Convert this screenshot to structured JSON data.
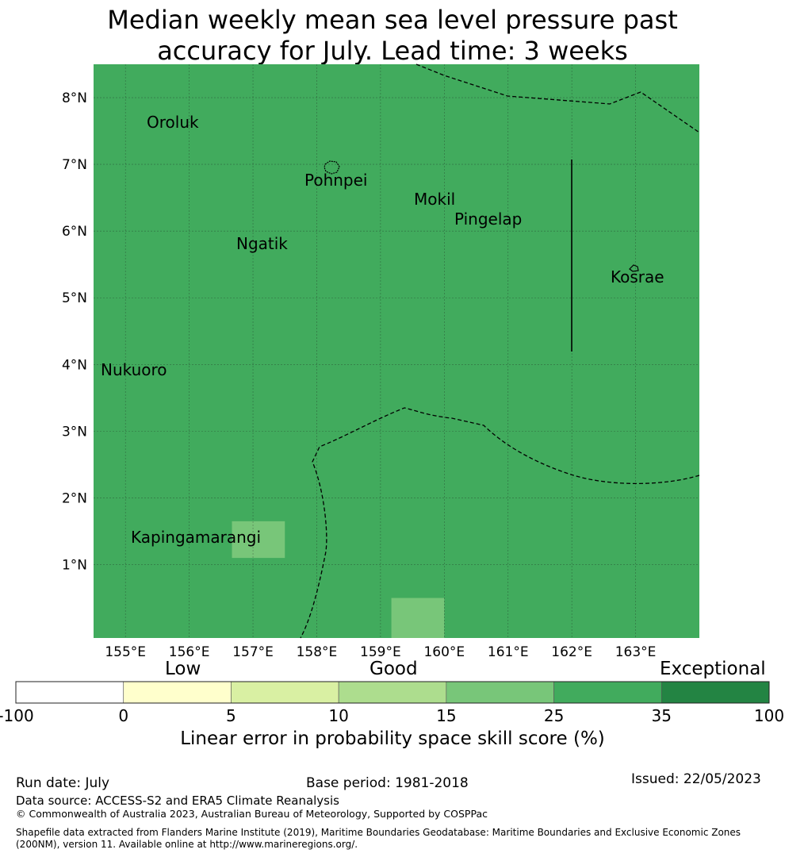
{
  "title_lines": [
    "Median weekly mean sea level pressure past",
    "accuracy for July. Lead time: 3 weeks"
  ],
  "map": {
    "lon_range": [
      154.5,
      164.0
    ],
    "lat_range": [
      -0.1,
      8.5
    ],
    "lon_ticks": [
      "155°E",
      "156°E",
      "157°E",
      "158°E",
      "159°E",
      "160°E",
      "161°E",
      "162°E",
      "163°E"
    ],
    "lat_ticks": [
      "1°N",
      "2°N",
      "3°N",
      "4°N",
      "5°N",
      "6°N",
      "7°N",
      "8°N"
    ],
    "background_skill_class": "25 to 35",
    "background_color": "#41ab5d",
    "highlight_cells": [
      {
        "lon": [
          156.67,
          157.5
        ],
        "lat": [
          1.1,
          1.65
        ],
        "skill_class": "15 to 25",
        "color": "#78c679"
      },
      {
        "lon": [
          159.17,
          160.0
        ],
        "lat": [
          -0.1,
          0.5
        ],
        "skill_class": "15 to 25",
        "color": "#78c679"
      }
    ],
    "places": [
      {
        "name": "Oroluk"
      },
      {
        "name": "Pohnpei"
      },
      {
        "name": "Mokil"
      },
      {
        "name": "Pingelap"
      },
      {
        "name": "Ngatik"
      },
      {
        "name": "Kosrae"
      },
      {
        "name": "Nukuoro"
      },
      {
        "name": "Kapingamarangi"
      }
    ]
  },
  "colorbar": {
    "categories": [
      "Low",
      "Good",
      "Exceptional"
    ],
    "segments": [
      {
        "range": [
          -100,
          0
        ],
        "color": "#ffffff"
      },
      {
        "range": [
          0,
          5
        ],
        "color": "#ffffcc"
      },
      {
        "range": [
          5,
          10
        ],
        "color": "#d9f0a3"
      },
      {
        "range": [
          10,
          15
        ],
        "color": "#addd8e"
      },
      {
        "range": [
          15,
          25
        ],
        "color": "#78c679"
      },
      {
        "range": [
          25,
          35
        ],
        "color": "#41ab5d"
      },
      {
        "range": [
          35,
          100
        ],
        "color": "#238443"
      }
    ],
    "tick_labels": [
      "-100",
      "0",
      "5",
      "10",
      "15",
      "25",
      "35",
      "100"
    ],
    "label": "Linear error in probability space skill score (%)"
  },
  "footer": {
    "run_date": "Run date: July",
    "base_period": "Base period: 1981-2018",
    "issued": "Issued: 22/05/2023",
    "data_source": "Data source: ACCESS-S2 and ERA5 Climate Reanalysis",
    "copyright": "© Commonwealth of Australia 2023, Australian Bureau of Meteorology, Supported by COSPPac",
    "shapefile_line1": "Shapefile data extracted from Flanders Marine Institute (2019), Maritime Boundaries Geodatabase: Maritime Boundaries and Exclusive Economic Zones",
    "shapefile_line2": "(200NM), version 11. Available online at http://www.marineregions.org/."
  }
}
